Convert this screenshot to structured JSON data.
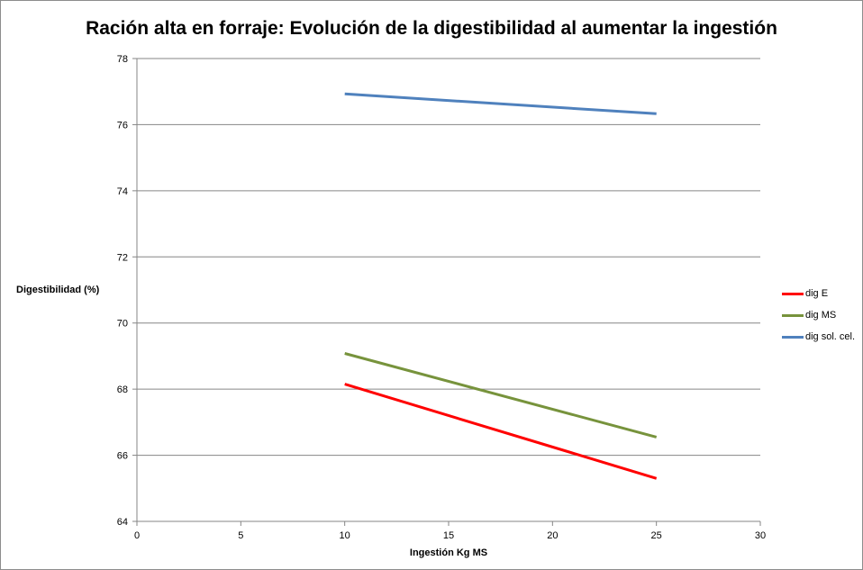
{
  "chart_data": {
    "type": "line",
    "title": "Ración alta en forraje: Evolución de la digestibilidad al aumentar la ingestión",
    "xlabel": "Ingestión Kg MS",
    "ylabel": "Digestibilidad (%)",
    "xlim": [
      0,
      30
    ],
    "ylim": [
      64,
      78
    ],
    "x_ticks": [
      "0",
      "5",
      "10",
      "15",
      "20",
      "25",
      "30"
    ],
    "y_ticks": [
      "64",
      "66",
      "68",
      "70",
      "72",
      "74",
      "76",
      "78"
    ],
    "grid": "horizontal",
    "legend_position": "right",
    "series": [
      {
        "name": "dig E",
        "color": "#ff0000",
        "x": [
          10,
          25
        ],
        "y": [
          68.15,
          65.3
        ]
      },
      {
        "name": "dig MS",
        "color": "#77933c",
        "x": [
          10,
          25
        ],
        "y": [
          69.08,
          66.55
        ]
      },
      {
        "name": "dig sol. cel.",
        "color": "#4f81bd",
        "x": [
          10,
          25
        ],
        "y": [
          76.93,
          76.33
        ]
      }
    ]
  }
}
